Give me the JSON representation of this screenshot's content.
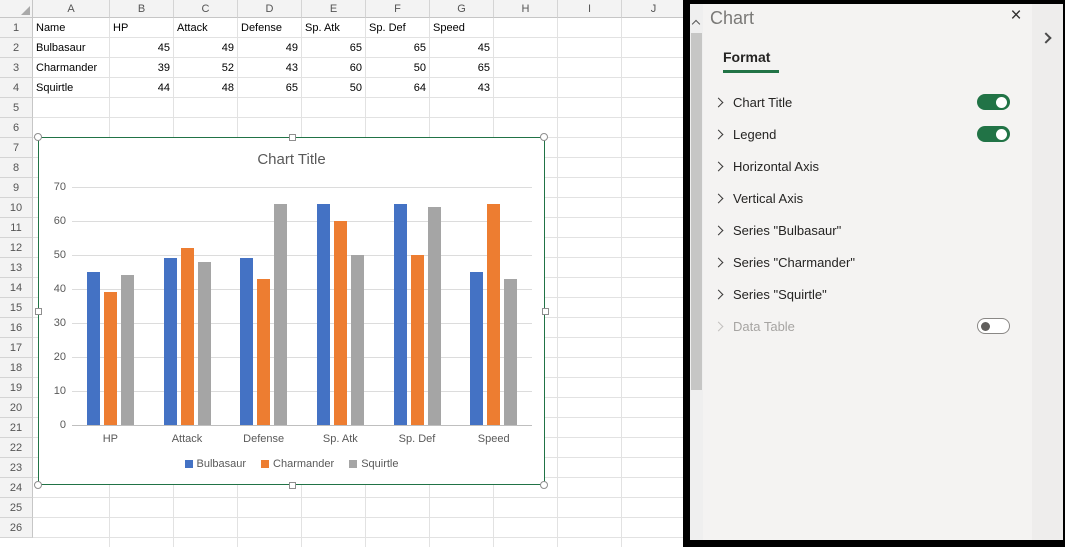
{
  "spreadsheet": {
    "column_letters": [
      "A",
      "B",
      "C",
      "D",
      "E",
      "F",
      "G",
      "H",
      "I",
      "J"
    ],
    "row_numbers": [
      "1",
      "2",
      "3",
      "4",
      "5",
      "6",
      "7",
      "8",
      "9",
      "10",
      "11",
      "12",
      "13",
      "14",
      "15",
      "16",
      "17",
      "18",
      "19",
      "20",
      "21",
      "22",
      "23",
      "24",
      "25",
      "26"
    ],
    "table_cells": [
      [
        "Name",
        "HP",
        "Attack",
        "Defense",
        "Sp. Atk",
        "Sp. Def",
        "Speed"
      ],
      [
        "Bulbasaur",
        "45",
        "49",
        "49",
        "65",
        "65",
        "45"
      ],
      [
        "Charmander",
        "39",
        "52",
        "43",
        "60",
        "50",
        "65"
      ],
      [
        "Squirtle",
        "44",
        "48",
        "65",
        "50",
        "64",
        "43"
      ]
    ]
  },
  "chart_data": {
    "type": "bar",
    "title": "Chart Title",
    "categories": [
      "HP",
      "Attack",
      "Defense",
      "Sp. Atk",
      "Sp. Def",
      "Speed"
    ],
    "series": [
      {
        "name": "Bulbasaur",
        "color": "#4472C4",
        "values": [
          45,
          49,
          49,
          65,
          65,
          45
        ]
      },
      {
        "name": "Charmander",
        "color": "#ED7D31",
        "values": [
          39,
          52,
          43,
          60,
          50,
          65
        ]
      },
      {
        "name": "Squirtle",
        "color": "#A5A5A5",
        "values": [
          44,
          48,
          65,
          50,
          64,
          43
        ]
      }
    ],
    "ylim": [
      0,
      70
    ],
    "yticks": [
      0,
      10,
      20,
      30,
      40,
      50,
      60,
      70
    ],
    "grid": true,
    "legend_position": "bottom"
  },
  "panel": {
    "title": "Chart",
    "close_icon": "×",
    "tab_label": "Format",
    "items": [
      {
        "label": "Chart Title",
        "toggle": "on"
      },
      {
        "label": "Legend",
        "toggle": "on"
      },
      {
        "label": "Horizontal Axis",
        "toggle": null
      },
      {
        "label": "Vertical Axis",
        "toggle": null
      },
      {
        "label": "Series \"Bulbasaur\"",
        "toggle": null
      },
      {
        "label": "Series \"Charmander\"",
        "toggle": null
      },
      {
        "label": "Series \"Squirtle\"",
        "toggle": null
      },
      {
        "label": "Data Table",
        "toggle": "off",
        "disabled": true
      }
    ]
  },
  "colors": {
    "accent_green": "#217346",
    "selection_border": "#217346",
    "axis_text": "#595959"
  }
}
